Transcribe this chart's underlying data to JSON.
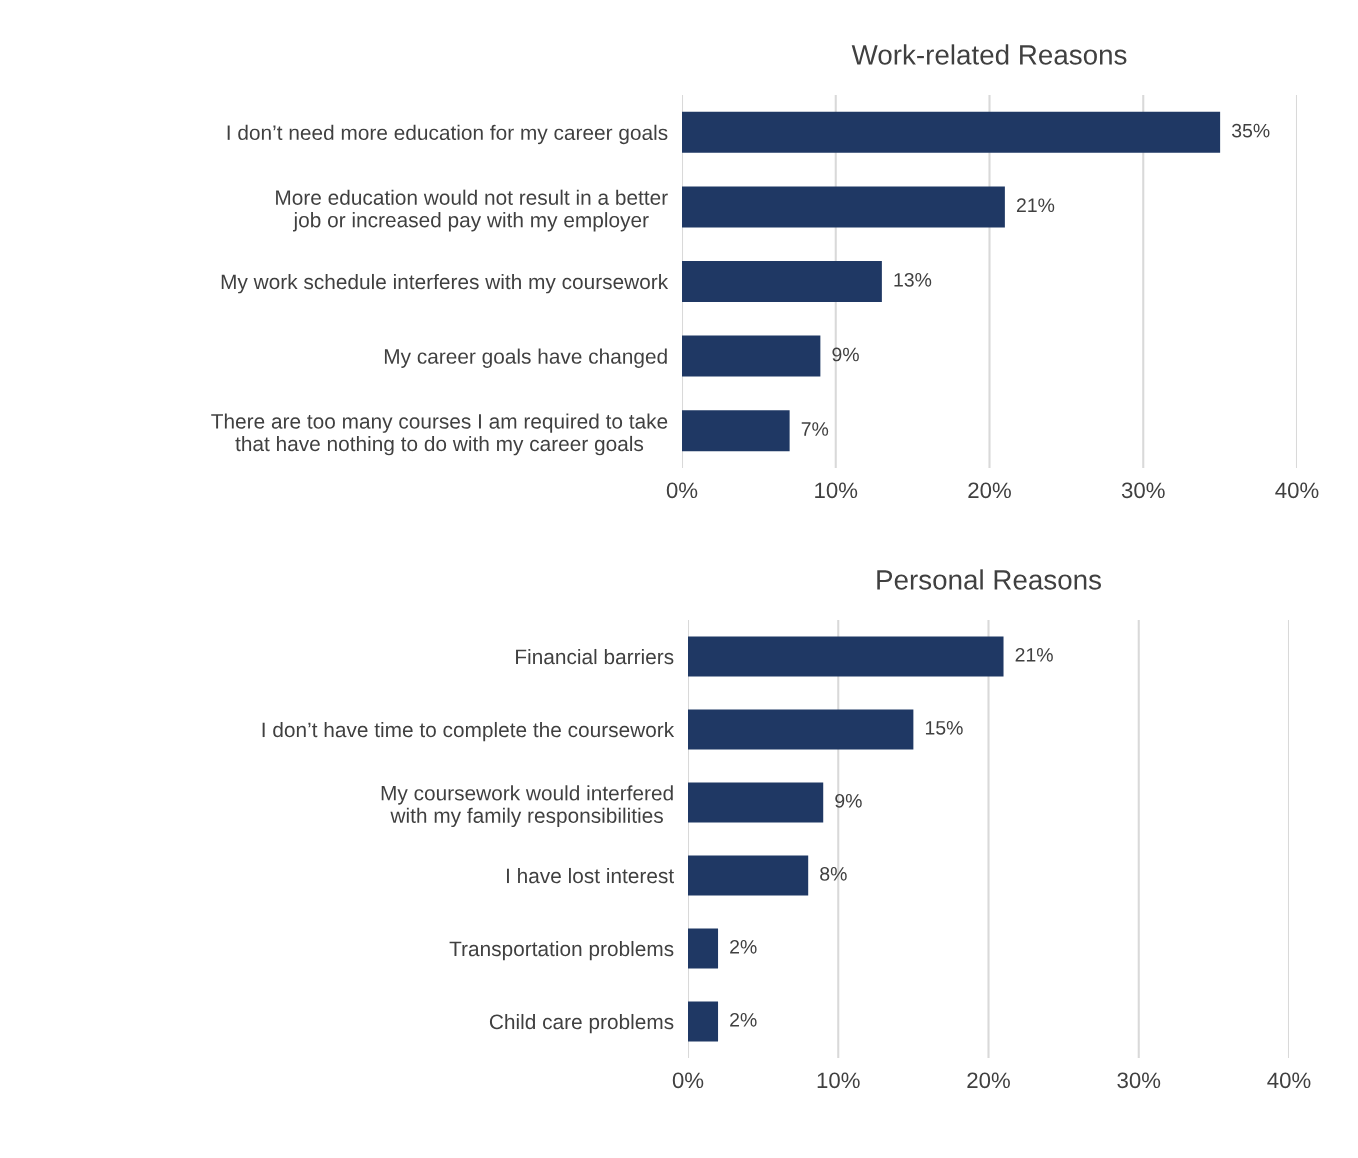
{
  "chart_data": [
    {
      "type": "bar",
      "orientation": "horizontal",
      "title": "Work-related Reasons",
      "categories": [
        "I don’t need more education for my career goals",
        "More education would not result in a better\njob or increased pay with my employer",
        "My work schedule interferes with my coursework",
        "My career goals have changed",
        "There are too many courses I am required to take\nthat have nothing to do with my career goals"
      ],
      "values": [
        35,
        21,
        13,
        9,
        7
      ],
      "value_labels": [
        "35%",
        "21%",
        "13%",
        "9%",
        "7%"
      ],
      "color": "#1f3864",
      "xlim": [
        0,
        40
      ],
      "xticks": [
        {
          "value": 0,
          "label": "0%"
        },
        {
          "value": 10,
          "label": "10%"
        },
        {
          "value": 20,
          "label": "20%"
        },
        {
          "value": 30,
          "label": "30%"
        },
        {
          "value": 40,
          "label": "40%"
        }
      ],
      "grid": "x",
      "legend": false
    },
    {
      "type": "bar",
      "orientation": "horizontal",
      "title": "Personal Reasons",
      "categories": [
        "Financial barriers",
        "I don’t have time to complete the coursework",
        "My coursework would interfered\nwith my family responsibilities",
        "I have lost interest",
        "Transportation problems",
        "Child care problems"
      ],
      "values": [
        21,
        15,
        9,
        8,
        2,
        2
      ],
      "value_labels": [
        "21%",
        "15%",
        "9%",
        "8%",
        "2%",
        "2%"
      ],
      "color": "#1f3864",
      "xlim": [
        0,
        40
      ],
      "xticks": [
        {
          "value": 0,
          "label": "0%"
        },
        {
          "value": 10,
          "label": "10%"
        },
        {
          "value": 20,
          "label": "20%"
        },
        {
          "value": 30,
          "label": "30%"
        },
        {
          "value": 40,
          "label": "40%"
        }
      ],
      "grid": "x",
      "legend": false
    }
  ]
}
